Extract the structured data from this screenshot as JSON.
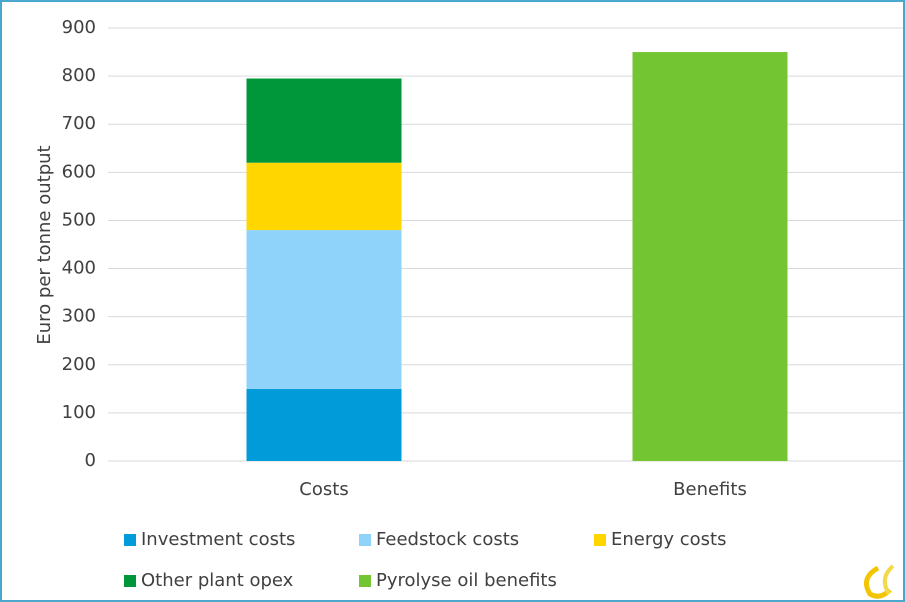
{
  "chart_data": {
    "type": "stacked_bar",
    "y_label": "Euro per tonne output",
    "categories": [
      "Costs",
      "Benefits"
    ],
    "series": [
      {
        "name": "Investment costs",
        "color": "#009bd8",
        "values": [
          150,
          null
        ]
      },
      {
        "name": "Feedstock costs",
        "color": "#8fd3fb",
        "values": [
          330,
          null
        ]
      },
      {
        "name": "Energy costs",
        "color": "#ffd600",
        "values": [
          140,
          null
        ]
      },
      {
        "name": "Other plant opex",
        "color": "#00963a",
        "values": [
          175,
          null
        ]
      },
      {
        "name": "Pyrolyse oil benefits",
        "color": "#73c632",
        "values": [
          null,
          850
        ]
      }
    ],
    "ylim": [
      0,
      900
    ],
    "yticks": [
      0,
      100,
      200,
      300,
      400,
      500,
      600,
      700,
      800,
      900
    ],
    "grid": true
  }
}
